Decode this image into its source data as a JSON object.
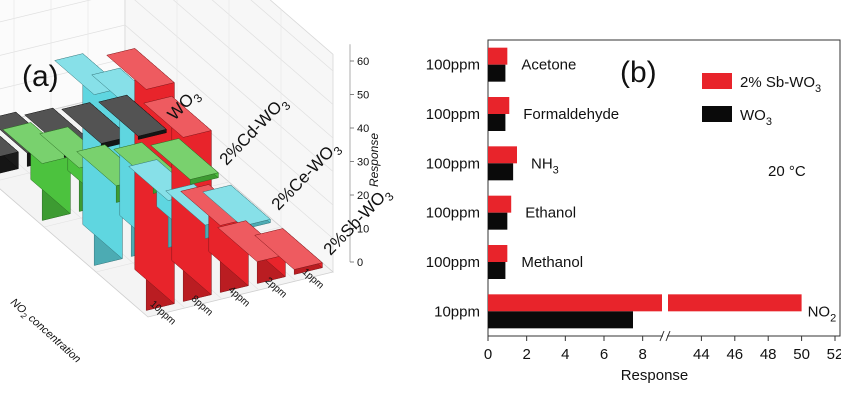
{
  "chart_data": [
    {
      "type": "bar3d",
      "panel_label": "(a)",
      "title": "",
      "xlabel": "NO2 concentration",
      "xlabel_sub": "2",
      "zlabel": "Response",
      "categories": [
        "1ppm",
        "2ppm",
        "4ppm",
        "8ppm",
        "10ppm"
      ],
      "series": [
        {
          "name": "WO3",
          "values": [
            1.0,
            1.5,
            2.5,
            4.0,
            5.0
          ],
          "color": "#1a1a1a"
        },
        {
          "name": "2%Cd-WO3",
          "values": [
            1.5,
            3.0,
            5.0,
            13.0,
            17.0
          ],
          "color": "#4cc23e"
        },
        {
          "name": "2%Ce-WO3",
          "values": [
            1.0,
            4.0,
            14.0,
            44.0,
            51.0
          ],
          "color": "#5fd6e0"
        },
        {
          "name": "2%Sb-WO3",
          "values": [
            1.5,
            6.5,
            20.0,
            49.0,
            66.0
          ],
          "color": "#e8242b"
        }
      ],
      "zticks": [
        "0",
        "10",
        "20",
        "30",
        "40",
        "50",
        "60"
      ],
      "zlim": [
        0,
        65
      ]
    },
    {
      "type": "bar",
      "orientation": "horizontal",
      "panel_label": "(b)",
      "title": "",
      "xlabel": "Response",
      "annotation": "20 °C",
      "categories": [
        {
          "gas": "Acetone",
          "conc": "100ppm"
        },
        {
          "gas": "Formaldehyde",
          "conc": "100ppm"
        },
        {
          "gas": "NH3",
          "conc": "100ppm"
        },
        {
          "gas": "Ethanol",
          "conc": "100ppm"
        },
        {
          "gas": "Methanol",
          "conc": "100ppm"
        },
        {
          "gas": "NO2",
          "conc": "10ppm"
        }
      ],
      "series": [
        {
          "name": "2% Sb-WO3",
          "values": [
            1.0,
            1.1,
            1.5,
            1.2,
            1.0,
            50.0
          ],
          "color": "#e8242b"
        },
        {
          "name": "WO3",
          "values": [
            0.9,
            0.9,
            1.3,
            1.0,
            0.9,
            7.5
          ],
          "color": "#0a0a0a"
        }
      ],
      "x_break": {
        "from": 9,
        "to": 42
      },
      "xticks_low": [
        "0",
        "2",
        "4",
        "6",
        "8"
      ],
      "xticks_high": [
        "44",
        "46",
        "48",
        "50",
        "52"
      ],
      "legend_position": "top-right"
    }
  ]
}
